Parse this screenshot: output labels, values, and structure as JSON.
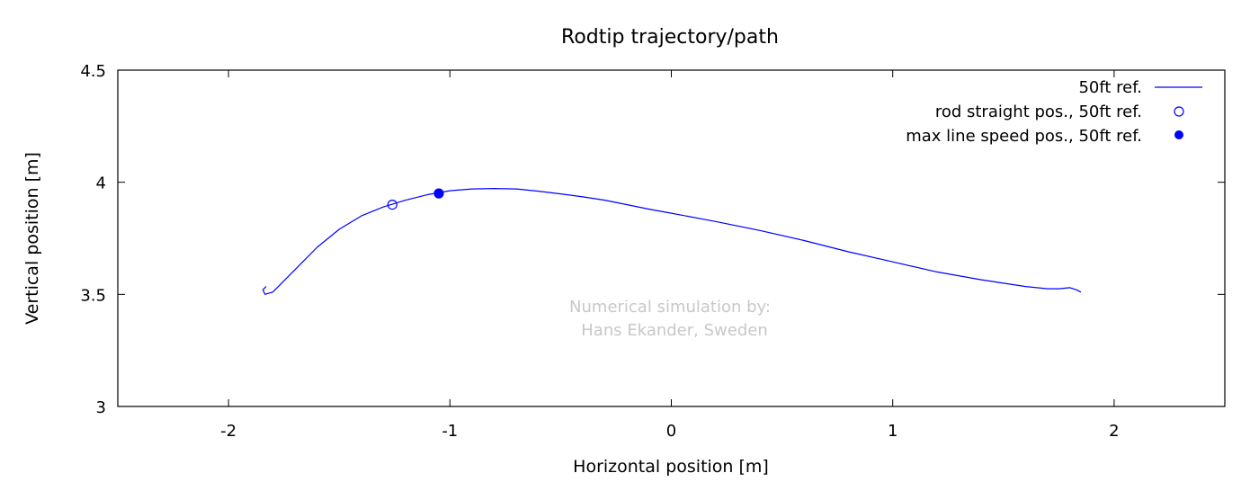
{
  "chart_data": {
    "type": "line",
    "title": "Rodtip trajectory/path",
    "xlabel": "Horizontal position [m]",
    "ylabel": "Vertical position [m]",
    "xlim": [
      -2.5,
      2.5
    ],
    "ylim": [
      3,
      4.5
    ],
    "xticks": [
      -2,
      -1,
      0,
      1,
      2
    ],
    "xtick_labels": [
      "-2",
      "-1",
      "0",
      "1",
      "2"
    ],
    "yticks": [
      3,
      3.5,
      4,
      4.5
    ],
    "ytick_labels": [
      "3",
      "3.5",
      "4",
      "4.5"
    ],
    "grid": false,
    "legend_position": "top-right",
    "series": [
      {
        "name": "50ft ref.",
        "type": "line",
        "color": "#0000ff",
        "x": [
          -1.83,
          -1.845,
          -1.835,
          -1.8,
          -1.75,
          -1.7,
          -1.6,
          -1.5,
          -1.4,
          -1.3,
          -1.2,
          -1.1,
          -1.0,
          -0.9,
          -0.8,
          -0.7,
          -0.6,
          -0.5,
          -0.4,
          -0.3,
          -0.2,
          -0.1,
          0.0,
          0.2,
          0.4,
          0.6,
          0.8,
          1.0,
          1.2,
          1.4,
          1.6,
          1.7,
          1.75,
          1.8,
          1.83,
          1.85
        ],
        "y": [
          3.535,
          3.52,
          3.5,
          3.51,
          3.56,
          3.61,
          3.71,
          3.79,
          3.85,
          3.89,
          3.92,
          3.945,
          3.962,
          3.97,
          3.972,
          3.97,
          3.96,
          3.948,
          3.935,
          3.92,
          3.9,
          3.88,
          3.862,
          3.825,
          3.785,
          3.74,
          3.69,
          3.645,
          3.6,
          3.565,
          3.535,
          3.525,
          3.525,
          3.53,
          3.52,
          3.51
        ]
      },
      {
        "name": "rod straight pos., 50ft ref.",
        "type": "scatter",
        "marker": "open-circle",
        "color": "#0000ff",
        "x": [
          -1.26
        ],
        "y": [
          3.9
        ]
      },
      {
        "name": "max line speed pos., 50ft ref.",
        "type": "scatter",
        "marker": "filled-circle",
        "color": "#0000ff",
        "x": [
          -1.05
        ],
        "y": [
          3.95
        ]
      }
    ],
    "annotations": [
      "Numerical simulation by:",
      "Hans Ekander, Sweden"
    ],
    "annotation_color": "#c8c8c8"
  }
}
